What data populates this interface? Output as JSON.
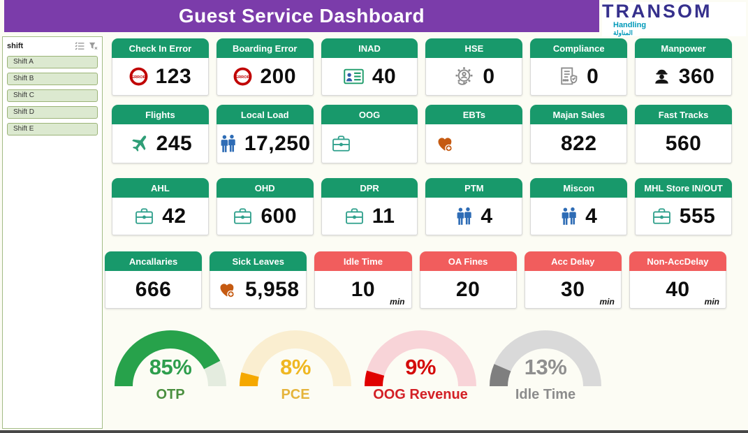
{
  "header": {
    "title": "Guest Service Dashboard"
  },
  "logo": {
    "name": "TRANSOM",
    "subtitle": "Handling",
    "arabic": "المناولة"
  },
  "slicer": {
    "title": "shift",
    "items": [
      "Shift A",
      "Shift B",
      "Shift C",
      "Shift D",
      "Shift E"
    ]
  },
  "colors": {
    "header_purple": "#7B3CAA",
    "card_green": "#18996B",
    "card_red": "#F15D5D",
    "people_blue": "#2E6CB5",
    "briefcase_teal": "#2FA08C",
    "heart_orange": "#C55A11",
    "error_red": "#C00000"
  },
  "cards": {
    "rows": [
      [
        {
          "label": "Check In Error",
          "value": "123",
          "icon": "error-icon",
          "theme": "green"
        },
        {
          "label": "Boarding Error",
          "value": "200",
          "icon": "error-icon",
          "theme": "green"
        },
        {
          "label": "INAD",
          "value": "40",
          "icon": "id-card-icon",
          "theme": "green"
        },
        {
          "label": "HSE",
          "value": "0",
          "icon": "gear-leaf-icon",
          "theme": "green"
        },
        {
          "label": "Compliance",
          "value": "0",
          "icon": "checklist-icon",
          "theme": "green"
        },
        {
          "label": "Manpower",
          "value": "360",
          "icon": "worker-icon",
          "theme": "green"
        }
      ],
      [
        {
          "label": "Flights",
          "value": "245",
          "icon": "plane-icon",
          "theme": "green"
        },
        {
          "label": "Local Load",
          "value": "17,250",
          "icon": "people-icon",
          "theme": "green"
        },
        {
          "label": "OOG",
          "value": "",
          "icon": "briefcase-icon",
          "theme": "green"
        },
        {
          "label": "EBTs",
          "value": "",
          "icon": "heart-plus-icon",
          "theme": "green"
        },
        {
          "label": "Majan Sales",
          "value": "822",
          "icon": "",
          "theme": "green"
        },
        {
          "label": "Fast Tracks",
          "value": "560",
          "icon": "",
          "theme": "green"
        }
      ],
      [
        {
          "label": "AHL",
          "value": "42",
          "icon": "briefcase-icon",
          "theme": "green"
        },
        {
          "label": "OHD",
          "value": "600",
          "icon": "briefcase-icon",
          "theme": "green"
        },
        {
          "label": "DPR",
          "value": "11",
          "icon": "briefcase-icon",
          "theme": "green"
        },
        {
          "label": "PTM",
          "value": "4",
          "icon": "people-icon",
          "theme": "green"
        },
        {
          "label": "Miscon",
          "value": "4",
          "icon": "people-icon",
          "theme": "green"
        },
        {
          "label": "MHL Store IN/OUT",
          "value": "555",
          "icon": "briefcase-icon",
          "theme": "green"
        }
      ],
      [
        {
          "label": "Ancallaries",
          "value": "666",
          "icon": "",
          "theme": "green"
        },
        {
          "label": "Sick Leaves",
          "value": "5,958",
          "icon": "heart-plus-icon",
          "theme": "green"
        },
        {
          "label": "Idle Time",
          "value": "10",
          "unit": "min",
          "icon": "",
          "theme": "red"
        },
        {
          "label": "OA Fines",
          "value": "20",
          "icon": "",
          "theme": "red"
        },
        {
          "label": "Acc Delay",
          "value": "30",
          "unit": "min",
          "icon": "",
          "theme": "red"
        },
        {
          "label": "Non-AccDelay",
          "value": "40",
          "unit": "min",
          "icon": "",
          "theme": "red"
        }
      ]
    ]
  },
  "chart_data": [
    {
      "type": "gauge",
      "title": "OTP",
      "value": 85,
      "unit": "%",
      "range": [
        0,
        100
      ],
      "fill_color": "#27A24B",
      "track_color": "#E4ECDF",
      "pct_color": "#2E9E4D",
      "label_color": "#4A8F3F"
    },
    {
      "type": "gauge",
      "title": "PCE",
      "value": 8,
      "unit": "%",
      "range": [
        0,
        100
      ],
      "fill_color": "#F5A800",
      "track_color": "#FAEED0",
      "pct_color": "#EFB722",
      "label_color": "#E5B43C"
    },
    {
      "type": "gauge",
      "title": "OOG Revenue",
      "value": 9,
      "unit": "%",
      "range": [
        0,
        100
      ],
      "fill_color": "#E00000",
      "track_color": "#F8D4D8",
      "pct_color": "#D40B0B",
      "label_color": "#D32026"
    },
    {
      "type": "gauge",
      "title": "Idle Time",
      "value": 13,
      "unit": "%",
      "range": [
        0,
        100
      ],
      "fill_color": "#7F7F7F",
      "track_color": "#D9D9D9",
      "pct_color": "#8F8F8F",
      "label_color": "#8C8C8C"
    }
  ]
}
